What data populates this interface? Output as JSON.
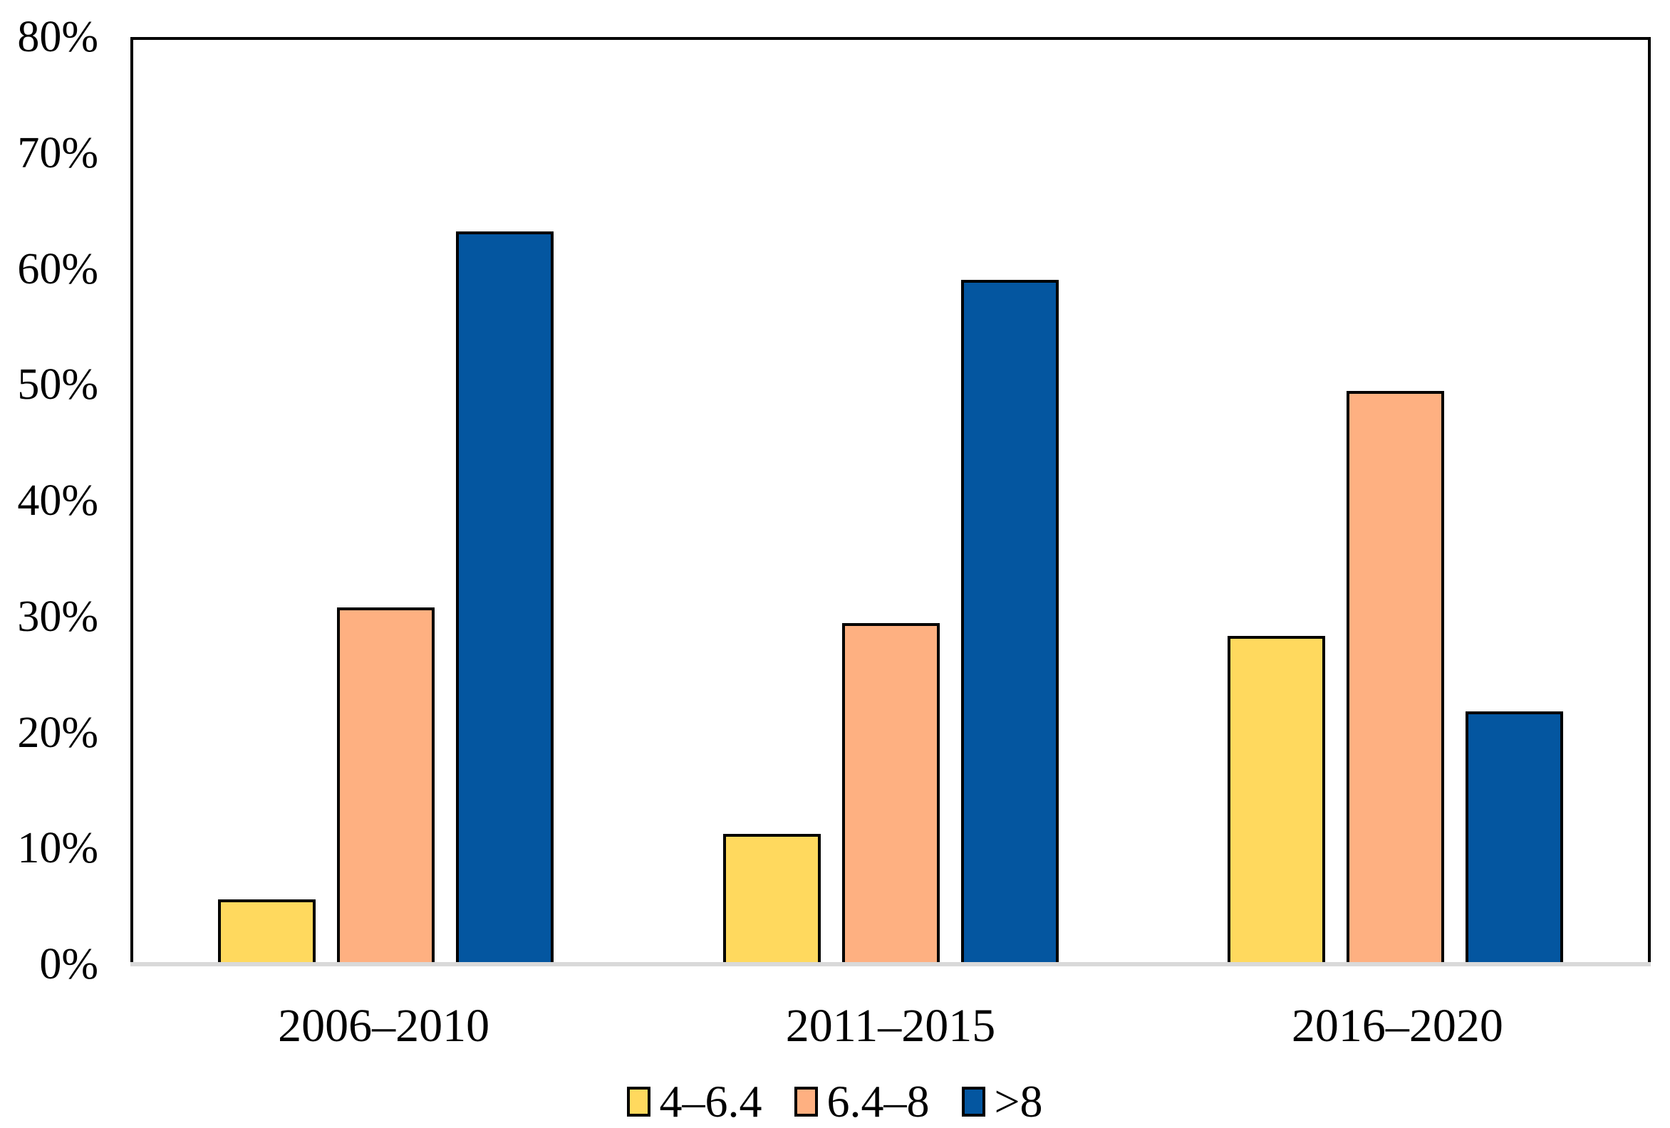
{
  "chart_data": {
    "type": "bar",
    "title": "",
    "xlabel": "",
    "ylabel": "",
    "categories": [
      "2006–2010",
      "2011–2015",
      "2016–2020"
    ],
    "series": [
      {
        "name": "4–6.4",
        "color": "#FFD95E",
        "values": [
          5.6,
          11.3,
          28.4
        ]
      },
      {
        "name": "6.4–8",
        "color": "#FEB081",
        "values": [
          30.9,
          29.5,
          49.6
        ]
      },
      {
        "name": ">8",
        "color": "#0456A0",
        "values": [
          63.4,
          59.2,
          21.9
        ]
      }
    ],
    "ylim": [
      0,
      80
    ],
    "yticks": [
      "0%",
      "10%",
      "20%",
      "30%",
      "40%",
      "50%",
      "60%",
      "70%",
      "80%"
    ],
    "grid": false,
    "legend_position": "bottom",
    "bar_outline_color": "#000000",
    "plot_border_color": "#000000",
    "baseline_color": "#D9D9D9"
  }
}
